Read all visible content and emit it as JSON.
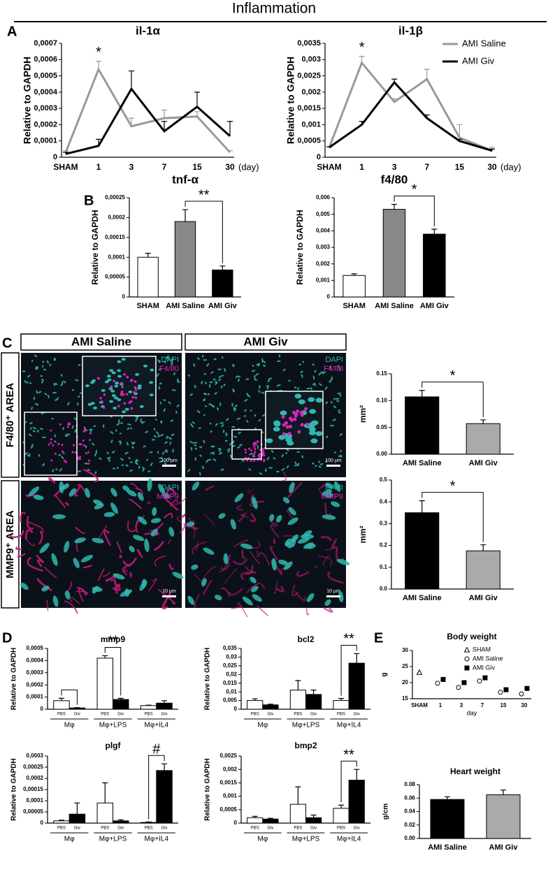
{
  "heading": "Inflammation",
  "panel_letters": [
    "A",
    "B",
    "C",
    "D",
    "E"
  ],
  "images": {
    "columns": [
      "AMI Saline",
      "AMI Giv"
    ],
    "rows": [
      "F4/80⁺ AREA",
      "MMP9⁺ AREA"
    ],
    "stains": [
      [
        "DAPI",
        "F4/80"
      ],
      [
        "DAPI",
        "MMP9"
      ]
    ],
    "scale_bars": [
      "100 μm",
      "10 μm"
    ]
  },
  "chart_data": [
    {
      "type": "line",
      "title": "il-1α",
      "y_label": "Relative to GAPDH",
      "x_label": "(day)",
      "categories": [
        "SHAM",
        "1",
        "3",
        "7",
        "15",
        "30"
      ],
      "series": [
        {
          "color": "#999999",
          "values": [
            3e-05,
            0.00054,
            0.00019,
            0.00024,
            0.00025,
            3e-05
          ],
          "errors": [
            1e-05,
            5e-05,
            5e-05,
            5e-05,
            3e-05,
            1e-05
          ]
        },
        {
          "color": "#000000",
          "values": [
            2e-05,
            7e-05,
            0.00042,
            0.00016,
            0.00031,
            0.00013
          ],
          "errors": [
            1e-05,
            4e-05,
            0.00011,
            6e-05,
            9e-05,
            9e-05
          ]
        }
      ],
      "ylim": [
        0,
        0.0007
      ],
      "yticks": [
        0,
        {
          "value": 0.0001,
          "label": "0,0001"
        },
        {
          "value": 0.0002,
          "label": "0,0002"
        },
        {
          "value": 0.0003,
          "label": "0,0003"
        },
        {
          "value": 0.0004,
          "label": "0,0004"
        },
        {
          "value": 0.0005,
          "label": "0,0005"
        },
        {
          "value": 0.0006,
          "label": "0,0006"
        },
        {
          "value": 0.0007,
          "label": "0,0007"
        }
      ],
      "annotations": [
        "*"
      ]
    },
    {
      "type": "line",
      "title": "il-1β",
      "y_label": "Relative to GAPDH",
      "x_label": "(day)",
      "categories": [
        "SHAM",
        "1",
        "3",
        "7",
        "15",
        "30"
      ],
      "legend": "right",
      "series": [
        {
          "name": "AMI Saline",
          "color": "#999999",
          "values": [
            0.0003,
            0.0029,
            0.0017,
            0.0024,
            0.0006,
            0.0002
          ],
          "errors": [
            2e-05,
            0.0002,
            0.0001,
            0.0003,
            0.0004,
            0.0001
          ]
        },
        {
          "name": "AMI Giv",
          "color": "#000000",
          "values": [
            0.0003,
            0.001,
            0.0023,
            0.0012,
            0.0005,
            0.0002
          ],
          "errors": [
            2e-05,
            0.0001,
            0.0001,
            0.0001,
            5e-05,
            5e-05
          ]
        }
      ],
      "ylim": [
        0,
        0.0035
      ],
      "yticks": [
        0,
        {
          "value": 0.0005,
          "label": "0,0005"
        },
        {
          "value": 0.001,
          "label": "0,001"
        },
        {
          "value": 0.0015,
          "label": "0,0015"
        },
        {
          "value": 0.002,
          "label": "0,002"
        },
        {
          "value": 0.0025,
          "label": "0,0025"
        },
        {
          "value": 0.003,
          "label": "0,003"
        },
        {
          "value": 0.0035,
          "label": "0,0035"
        }
      ],
      "annotations": [
        "*"
      ]
    },
    {
      "type": "bar",
      "title": "tnf-α",
      "y_label": "Relative to GAPDH",
      "categories": [
        "SHAM",
        "AMI Saline",
        "AMI Giv"
      ],
      "values": [
        0.0001,
        0.00019,
        6.8e-05
      ],
      "errors": [
        1e-05,
        3e-05,
        1e-05
      ],
      "colors": [
        "#ffffff",
        "#888888",
        "#000000"
      ],
      "ylim": [
        0,
        0.00025
      ],
      "yticks": [
        0,
        {
          "value": 5e-05,
          "label": "0,00005"
        },
        {
          "value": 0.0001,
          "label": "0,0001"
        },
        {
          "value": 0.00015,
          "label": "0,00015"
        },
        {
          "value": 0.0002,
          "label": "0,0002"
        },
        {
          "value": 0.00025,
          "label": "0,00025"
        }
      ],
      "annotations": [
        "**"
      ]
    },
    {
      "type": "bar",
      "title": "f4/80",
      "y_label": "Relative to GAPDH",
      "categories": [
        "SHAM",
        "AMI Saline",
        "AMI Giv"
      ],
      "values": [
        0.0013,
        0.0053,
        0.0038
      ],
      "errors": [
        0.0001,
        0.0003,
        0.0003
      ],
      "colors": [
        "#ffffff",
        "#888888",
        "#000000"
      ],
      "ylim": [
        0,
        0.006
      ],
      "yticks": [
        0,
        {
          "value": 0.001,
          "label": "0,001"
        },
        {
          "value": 0.002,
          "label": "0,002"
        },
        {
          "value": 0.003,
          "label": "0,003"
        },
        {
          "value": 0.004,
          "label": "0,004"
        },
        {
          "value": 0.005,
          "label": "0,005"
        },
        {
          "value": 0.006,
          "label": "0,006"
        }
      ],
      "annotations": [
        "*"
      ]
    },
    {
      "type": "bar",
      "y_label": "mm²",
      "categories": [
        "AMI Saline",
        "AMI Giv"
      ],
      "values": [
        0.107,
        0.057
      ],
      "errors": [
        0.012,
        0.007
      ],
      "colors": [
        "#000000",
        "#aaaaaa"
      ],
      "ylim": [
        0,
        0.15
      ],
      "yticks": [
        {
          "value": 0,
          "label": "0.00"
        },
        {
          "value": 0.05,
          "label": "0.05"
        },
        {
          "value": 0.1,
          "label": "0.10"
        },
        {
          "value": 0.15,
          "label": "0.15"
        }
      ],
      "annotations": [
        "*"
      ]
    },
    {
      "type": "bar",
      "y_label": "mm²",
      "categories": [
        "AMI Saline",
        "AMI Giv"
      ],
      "values": [
        0.35,
        0.175
      ],
      "errors": [
        0.055,
        0.028
      ],
      "colors": [
        "#000000",
        "#aaaaaa"
      ],
      "ylim": [
        0,
        0.5
      ],
      "yticks": [
        {
          "value": 0,
          "label": "0.0"
        },
        0.1,
        0.2,
        0.3,
        0.4,
        0.5
      ],
      "annotations": [
        "*"
      ]
    },
    {
      "type": "grouped_bar",
      "title": "mmp9",
      "y_label": "Relative to GAPDH",
      "categories": [
        "Mφ",
        "Mφ+LPS",
        "Mφ+IL4"
      ],
      "series": [
        {
          "name": "PBS",
          "color": "#ffffff",
          "values": [
            7e-05,
            0.00042,
            3e-05
          ],
          "errors": [
            2e-05,
            2e-05,
            3e-06
          ]
        },
        {
          "name": "Giv",
          "color": "#000000",
          "values": [
            1e-05,
            8e-05,
            5e-05
          ],
          "errors": [
            3e-06,
            1e-05,
            2e-05
          ]
        }
      ],
      "ylim": [
        0,
        0.0005
      ],
      "yticks": [
        0,
        {
          "value": 0.0001,
          "label": "0,0001"
        },
        {
          "value": 0.0002,
          "label": "0,0002"
        },
        {
          "value": 0.0003,
          "label": "0,0003"
        },
        {
          "value": 0.0004,
          "label": "0,0004"
        },
        {
          "value": 0.0005,
          "label": "0,0005"
        }
      ],
      "annotations": [
        "**"
      ]
    },
    {
      "type": "grouped_bar",
      "title": "bcl2",
      "y_label": "Relative to GAPDH",
      "categories": [
        "Mφ",
        "Mφ+LPS",
        "Mφ+IL4"
      ],
      "series": [
        {
          "name": "PBS",
          "color": "#ffffff",
          "values": [
            0.005,
            0.011,
            0.005
          ],
          "errors": [
            0.001,
            0.0055,
            0.0012
          ]
        },
        {
          "name": "Giv",
          "color": "#000000",
          "values": [
            0.0025,
            0.0085,
            0.0265
          ],
          "errors": [
            0.0004,
            0.0025,
            0.0055
          ]
        }
      ],
      "ylim": [
        0,
        0.035
      ],
      "yticks": [
        0,
        {
          "value": 0.005,
          "label": "0,005"
        },
        {
          "value": 0.01,
          "label": "0,01"
        },
        {
          "value": 0.015,
          "label": "0,015"
        },
        {
          "value": 0.02,
          "label": "0,02"
        },
        {
          "value": 0.025,
          "label": "0,025"
        },
        {
          "value": 0.03,
          "label": "0,03"
        },
        {
          "value": 0.035,
          "label": "0,035"
        }
      ],
      "annotations": [
        "**"
      ]
    },
    {
      "type": "grouped_bar",
      "title": "plgf",
      "y_label": "Relative to GAPDH",
      "categories": [
        "Mφ",
        "Mφ+LPS",
        "Mφ+IL4"
      ],
      "series": [
        {
          "name": "PBS",
          "color": "#ffffff",
          "values": [
            1e-05,
            9e-05,
            3e-06
          ],
          "errors": [
            3e-06,
            9e-05,
            2e-06
          ]
        },
        {
          "name": "Giv",
          "color": "#000000",
          "values": [
            4e-05,
            1e-05,
            0.000235
          ],
          "errors": [
            5e-05,
            5e-06,
            3e-05
          ]
        }
      ],
      "ylim": [
        0,
        0.0003
      ],
      "yticks": [
        0,
        {
          "value": 5e-05,
          "label": "0,00005"
        },
        {
          "value": 0.0001,
          "label": "0,0001"
        },
        {
          "value": 0.00015,
          "label": "0,00015"
        },
        {
          "value": 0.0002,
          "label": "0,0002"
        },
        {
          "value": 0.00025,
          "label": "0,00025"
        },
        {
          "value": 0.0003,
          "label": "0,0003"
        }
      ],
      "annotations": [
        "#"
      ]
    },
    {
      "type": "grouped_bar",
      "title": "bmp2",
      "y_label": "Relative to GAPDH",
      "categories": [
        "Mφ",
        "Mφ+LPS",
        "Mφ+IL4"
      ],
      "series": [
        {
          "name": "PBS",
          "color": "#ffffff",
          "values": [
            0.0002,
            0.0007,
            0.00055
          ],
          "errors": [
            5e-05,
            0.00065,
            0.00012
          ]
        },
        {
          "name": "Giv",
          "color": "#000000",
          "values": [
            0.00015,
            0.0002,
            0.0016
          ],
          "errors": [
            3e-05,
            0.0001,
            0.0004
          ]
        }
      ],
      "ylim": [
        0,
        0.0025
      ],
      "yticks": [
        0,
        {
          "value": 0.0005,
          "label": "0,0005"
        },
        {
          "value": 0.001,
          "label": "0,001"
        },
        {
          "value": 0.0015,
          "label": "0,0015"
        },
        {
          "value": 0.002,
          "label": "0,002"
        },
        {
          "value": 0.0025,
          "label": "0,0025"
        }
      ],
      "annotations": [
        "**"
      ]
    },
    {
      "type": "scatter",
      "title": "Body weight",
      "y_label": "g",
      "x_label": "day",
      "categories": [
        "SHAM",
        "1",
        "3",
        "7",
        "15",
        "30"
      ],
      "legend": "top right",
      "series": [
        {
          "name": "SHAM",
          "marker": "triangle",
          "color": "#ffffff",
          "values": [
            23.2,
            null,
            null,
            null,
            null,
            null
          ]
        },
        {
          "name": "AMI Saline",
          "marker": "circle",
          "color": "#ffffff",
          "values": [
            null,
            19.8,
            18.5,
            20.5,
            17,
            16.5
          ]
        },
        {
          "name": "AMI Giv",
          "marker": "square",
          "color": "#000000",
          "values": [
            null,
            21,
            20,
            21.5,
            17.8,
            18.2
          ]
        }
      ],
      "ylim": [
        15,
        30
      ],
      "yticks": [
        15,
        20,
        25,
        30
      ]
    },
    {
      "type": "bar",
      "title": "Heart weight",
      "y_label": "g/cm",
      "categories": [
        "AMI Saline",
        "AMI Giv"
      ],
      "values": [
        0.058,
        0.065
      ],
      "errors": [
        0.004,
        0.007
      ],
      "colors": [
        "#000000",
        "#aaaaaa"
      ],
      "ylim": [
        0,
        0.08
      ],
      "yticks": [
        {
          "value": 0,
          "label": "0.00"
        },
        {
          "value": 0.02,
          "label": "0.02"
        },
        {
          "value": 0.04,
          "label": "0.04"
        },
        {
          "value": 0.06,
          "label": "0.06"
        },
        {
          "value": 0.08,
          "label": "0.08"
        }
      ]
    }
  ]
}
